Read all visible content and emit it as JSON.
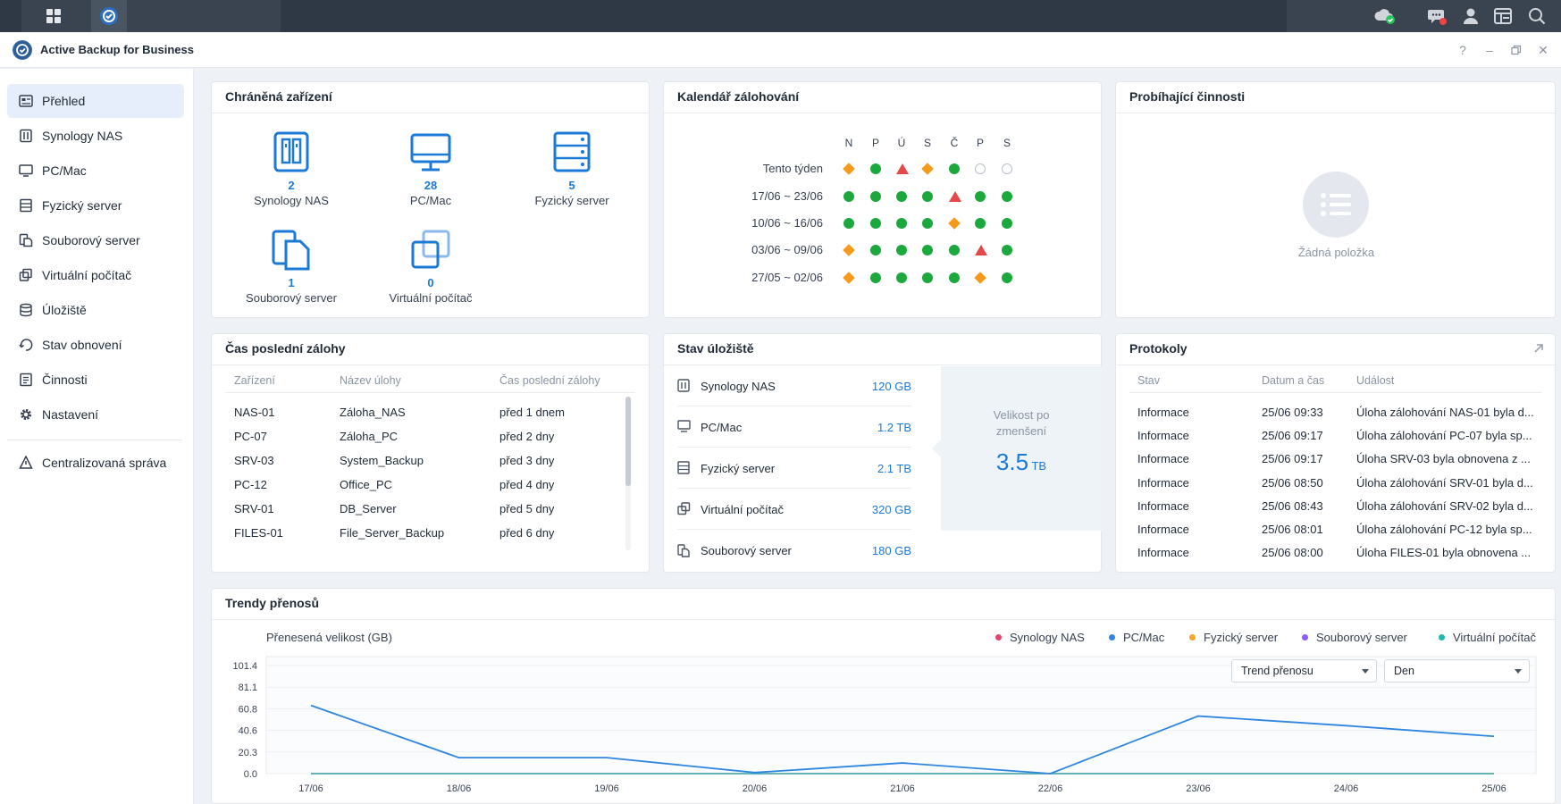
{
  "window": {
    "title": "Active Backup for Business"
  },
  "sidebar": {
    "items": [
      {
        "label": "Přehled",
        "icon": "overview-icon"
      },
      {
        "label": "Synology NAS",
        "icon": "nas-icon"
      },
      {
        "label": "PC/Mac",
        "icon": "monitor-icon"
      },
      {
        "label": "Fyzický server",
        "icon": "server-icon"
      },
      {
        "label": "Souborový server",
        "icon": "file-server-icon"
      },
      {
        "label": "Virtuální počítač",
        "icon": "vm-icon"
      },
      {
        "label": "Úložiště",
        "icon": "storage-icon"
      },
      {
        "label": "Stav obnovení",
        "icon": "restore-icon"
      },
      {
        "label": "Činnosti",
        "icon": "activity-icon"
      },
      {
        "label": "Nastavení",
        "icon": "gear-icon"
      },
      {
        "label": "Centralizovaná správa",
        "icon": "central-mgmt-icon"
      }
    ]
  },
  "protected": {
    "title": "Chráněná zařízení",
    "devices": [
      {
        "count": "2",
        "label": "Synology NAS"
      },
      {
        "count": "28",
        "label": "PC/Mac"
      },
      {
        "count": "5",
        "label": "Fyzický server"
      },
      {
        "count": "1",
        "label": "Souborový server"
      },
      {
        "count": "0",
        "label": "Virtuální počítač"
      }
    ]
  },
  "calendar": {
    "title": "Kalendář zálohování",
    "days": [
      "N",
      "P",
      "Ú",
      "S",
      "Č",
      "P",
      "S"
    ],
    "rows": [
      {
        "label": "Tento týden",
        "marks": [
          "warning",
          "success",
          "error",
          "warning",
          "success",
          "none",
          "none"
        ]
      },
      {
        "label": "17/06 ~ 23/06",
        "marks": [
          "success",
          "success",
          "success",
          "success",
          "error",
          "success",
          "success"
        ]
      },
      {
        "label": "10/06 ~ 16/06",
        "marks": [
          "success",
          "success",
          "success",
          "success",
          "warning",
          "success",
          "success"
        ]
      },
      {
        "label": "03/06 ~ 09/06",
        "marks": [
          "warning",
          "success",
          "success",
          "success",
          "success",
          "error",
          "success"
        ]
      },
      {
        "label": "27/05 ~ 02/06",
        "marks": [
          "warning",
          "success",
          "success",
          "success",
          "success",
          "warning",
          "success"
        ]
      }
    ]
  },
  "ongoing": {
    "title": "Probíhající činnosti",
    "empty": "Žádná položka"
  },
  "last_backup": {
    "title": "Čas poslední zálohy",
    "headers": [
      "Zařízení",
      "Název úlohy",
      "Čas poslední zálohy"
    ],
    "rows": [
      [
        "NAS-01",
        "Záloha_NAS",
        "před 1 dnem"
      ],
      [
        "PC-07",
        "Záloha_PC",
        "před 2 dny"
      ],
      [
        "SRV-03",
        "System_Backup",
        "před 3 dny"
      ],
      [
        "PC-12",
        "Office_PC",
        "před 4 dny"
      ],
      [
        "SRV-01",
        "DB_Server",
        "před 5 dny"
      ],
      [
        "FILES-01",
        "File_Server_Backup",
        "před 6 dny"
      ]
    ]
  },
  "storage": {
    "title": "Stav úložiště",
    "rows": [
      {
        "label": "Synology NAS",
        "value": "120 GB"
      },
      {
        "label": "PC/Mac",
        "value": "1.2 TB"
      },
      {
        "label": "Fyzický server",
        "value": "2.1 TB"
      },
      {
        "label": "Virtuální počítač",
        "value": "320 GB"
      },
      {
        "label": "Souborový server",
        "value": "180 GB"
      }
    ],
    "reduced_label": "Velikost po zmenšení",
    "reduced_value": "3.5",
    "reduced_unit": "TB"
  },
  "logs": {
    "title": "Protokoly",
    "headers": [
      "Stav",
      "Datum a čas",
      "Událost"
    ],
    "rows": [
      [
        "Informace",
        "25/06 09:33",
        "Úloha zálohování NAS-01 byla d..."
      ],
      [
        "Informace",
        "25/06 09:17",
        "Úloha zálohování PC-07 byla sp..."
      ],
      [
        "Informace",
        "25/06 09:17",
        "Úloha SRV-03 byla obnovena z ..."
      ],
      [
        "Informace",
        "25/06 08:50",
        "Úloha zálohování SRV-01 byla d..."
      ],
      [
        "Informace",
        "25/06 08:43",
        "Úloha zálohování SRV-02 byla d..."
      ],
      [
        "Informace",
        "25/06 08:01",
        "Úloha zálohování PC-12 byla sp..."
      ],
      [
        "Informace",
        "25/06 08:00",
        "Úloha FILES-01 byla obnovena ..."
      ]
    ]
  },
  "trend": {
    "title": "Trendy přenosů",
    "select_type": "Trend přenosu",
    "select_period": "Den"
  },
  "colors": {
    "accent": "#1b7ad6",
    "success": "#1ba83c",
    "warning": "#f59a1b",
    "error": "#e44848",
    "series_nas": "#e2466d",
    "series_pc": "#2f86e0",
    "series_server": "#f5a623",
    "series_file": "#8b5cf6",
    "series_vm": "#22b8b0"
  },
  "chart_data": {
    "type": "line",
    "ylabel": "Přenesená velikost (GB)",
    "x": [
      "17/06",
      "18/06",
      "19/06",
      "20/06",
      "21/06",
      "22/06",
      "23/06",
      "24/06",
      "25/06"
    ],
    "yticks": [
      "0.0",
      "20.3",
      "40.6",
      "60.8",
      "81.1",
      "101.4"
    ],
    "ylim": [
      0,
      101.4
    ],
    "series": [
      {
        "name": "Synology NAS",
        "values": [
          0,
          0,
          0,
          0,
          0,
          0,
          0,
          0,
          0
        ]
      },
      {
        "name": "PC/Mac",
        "values": [
          64,
          15,
          15,
          1,
          10,
          0,
          54,
          45,
          35
        ]
      },
      {
        "name": "Fyzický server",
        "values": [
          0,
          0,
          0,
          0,
          0,
          0,
          0,
          0,
          0
        ]
      },
      {
        "name": "Souborový server",
        "values": [
          0,
          0,
          0,
          0,
          0,
          0,
          0,
          0,
          0
        ]
      },
      {
        "name": "Virtuální počítač",
        "values": [
          0,
          0,
          0,
          0,
          0,
          0,
          0,
          0,
          0
        ]
      }
    ]
  }
}
